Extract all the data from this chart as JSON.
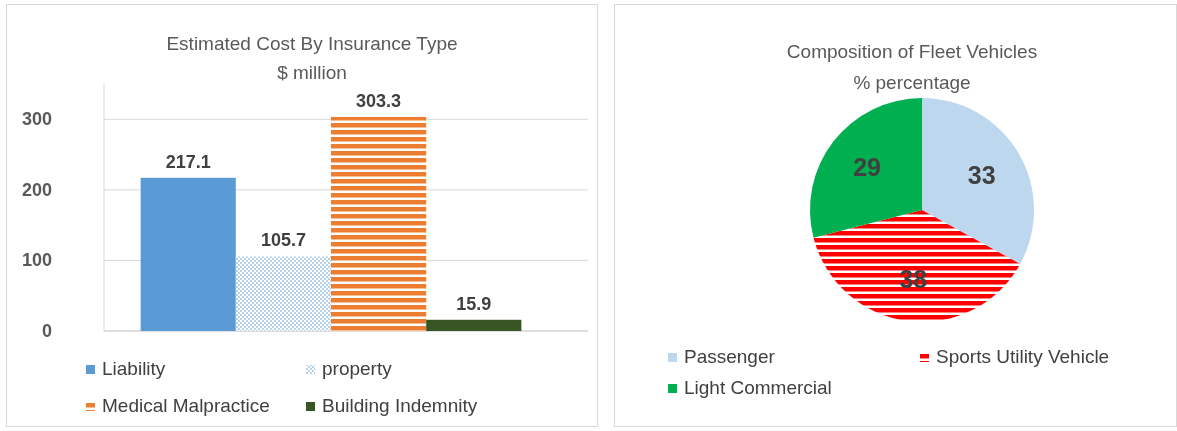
{
  "chart_data": [
    {
      "type": "bar",
      "title": "Estimated Cost By Insurance Type",
      "subtitle": "$ million",
      "categories": [
        null
      ],
      "series": [
        {
          "name": "Liability",
          "color": "#5b9bd5",
          "values": [
            217.1
          ]
        },
        {
          "name": "property",
          "color": "#5b9bd5",
          "values": [
            105.7
          ]
        },
        {
          "name": "Medical Malpractice",
          "color": "#ed7d31",
          "values": [
            303.3
          ]
        },
        {
          "name": "Building Indemnity",
          "color": "#375623",
          "values": [
            15.9
          ]
        }
      ],
      "ylim": [
        0,
        350
      ],
      "yticks": [
        0,
        100,
        200,
        300
      ],
      "grid": "y",
      "data_labels": true,
      "legend": "bottom"
    },
    {
      "type": "pie",
      "title": "Composition of Fleet Vehicles",
      "subtitle": "% percentage",
      "categories": [
        "Passenger",
        "Sports Utility Vehicle",
        "Light Commercial"
      ],
      "values": [
        33,
        38,
        29
      ],
      "colors": [
        "#bdd7ee",
        "#ff0000",
        "#00b050"
      ],
      "data_labels": true,
      "legend": "bottom"
    }
  ]
}
